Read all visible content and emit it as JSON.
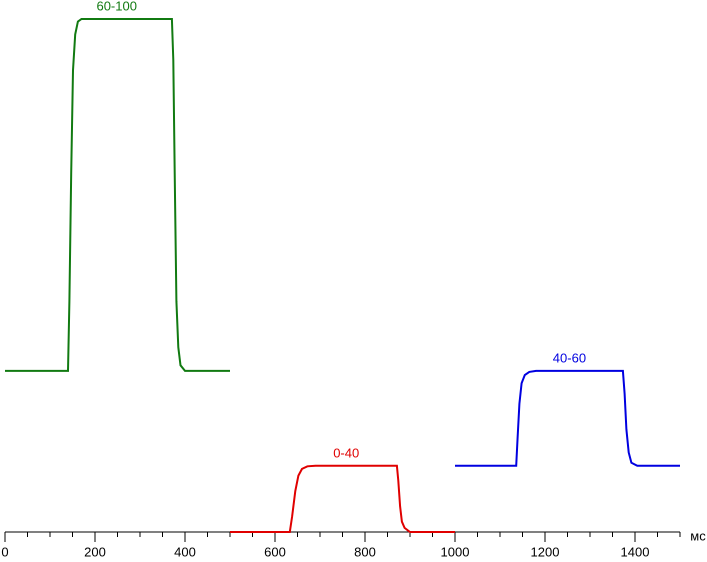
{
  "chart_data": {
    "type": "line",
    "x_unit_label": "мс",
    "xlim": [
      0,
      1500
    ],
    "xticks": [
      0,
      200,
      400,
      600,
      800,
      1000,
      1200,
      1400
    ],
    "minor_xticks": [
      50,
      100,
      150,
      250,
      300,
      350,
      450,
      500,
      550,
      650,
      700,
      750,
      850,
      900,
      950,
      1050,
      1100,
      1150,
      1250,
      1300,
      1350,
      1450,
      1500
    ],
    "ylim": [
      0,
      100
    ],
    "series": [
      {
        "name": "60-100",
        "color": "#117a11",
        "x": [
          0,
          140,
          143,
          147,
          151,
          156,
          162,
          170,
          371,
          374,
          377,
          381,
          385,
          390,
          400,
          500
        ],
        "values": [
          31.4,
          31.4,
          45,
          70,
          90,
          97,
          99.5,
          100,
          100,
          92,
          70,
          45,
          36,
          32.5,
          31.4,
          31.4
        ]
      },
      {
        "name": "0-40",
        "color": "#e00000",
        "x": [
          500,
          633,
          638,
          645,
          652,
          660,
          672,
          690,
          871,
          874,
          878,
          882,
          888,
          900,
          1000
        ],
        "values": [
          0,
          0,
          3,
          8,
          11,
          12.3,
          12.8,
          12.9,
          12.9,
          10,
          5,
          2,
          0.8,
          0,
          0
        ]
      },
      {
        "name": "40-60",
        "color": "#0000e0",
        "x": [
          1000,
          1136,
          1139,
          1143,
          1148,
          1155,
          1165,
          1180,
          1373,
          1377,
          1381,
          1386,
          1392,
          1405,
          1500
        ],
        "values": [
          12.9,
          12.9,
          18,
          25,
          29,
          30.6,
          31.2,
          31.4,
          31.4,
          27,
          20,
          15.5,
          13.5,
          12.9,
          12.9
        ]
      }
    ]
  }
}
